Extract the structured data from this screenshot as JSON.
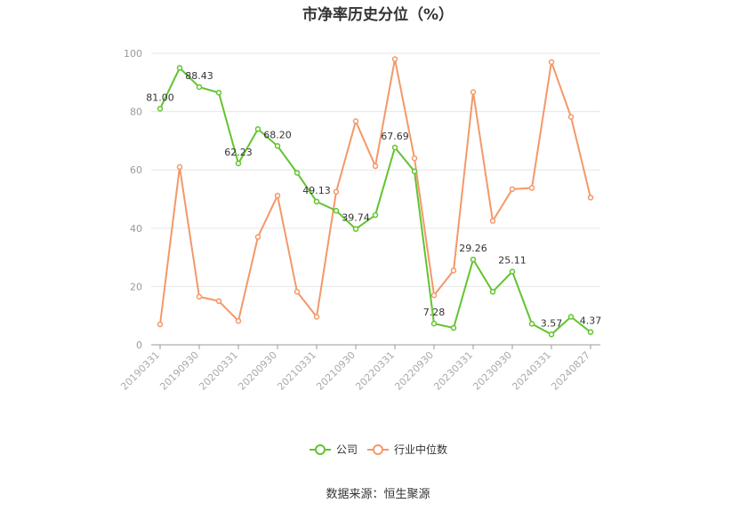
{
  "chart_data": {
    "type": "line",
    "title": "市净率历史分位（%）",
    "source": "数据来源：恒生聚源",
    "ylim": [
      0,
      100
    ],
    "y_ticks": [
      "0",
      "20",
      "40",
      "60",
      "80",
      "100"
    ],
    "x_tick_labels": [
      "20190331",
      "20190930",
      "20200331",
      "20200930",
      "20210331",
      "20210930",
      "20220331",
      "20220930",
      "20230331",
      "20230930",
      "20240331",
      "20240827"
    ],
    "grid": true,
    "legend_position": "bottom-center",
    "series": [
      {
        "name": "公司",
        "color": "#62c42f",
        "values": [
          81.0,
          95.0,
          88.43,
          86.5,
          62.23,
          74.0,
          68.2,
          59.0,
          49.13,
          46.0,
          39.74,
          44.5,
          67.69,
          59.5,
          7.28,
          5.8,
          29.26,
          18.2,
          25.11,
          7.2,
          3.57,
          9.6,
          4.37
        ],
        "labels": [
          "81.00",
          "",
          "88.43",
          "",
          "62.23",
          "",
          "68.20",
          "",
          "49.13",
          "",
          "39.74",
          "",
          "67.69",
          "",
          "7.28",
          "",
          "29.26",
          "",
          "25.11",
          "",
          "3.57",
          "",
          "4.37"
        ]
      },
      {
        "name": "行业中位数",
        "color": "#f4986a",
        "values": [
          7.0,
          61.0,
          16.5,
          15.0,
          8.2,
          37.0,
          51.2,
          18.2,
          9.6,
          52.5,
          76.7,
          61.3,
          98.0,
          64.0,
          17.0,
          25.5,
          86.7,
          42.5,
          53.4,
          53.8,
          97.0,
          78.2,
          50.5
        ]
      }
    ]
  }
}
